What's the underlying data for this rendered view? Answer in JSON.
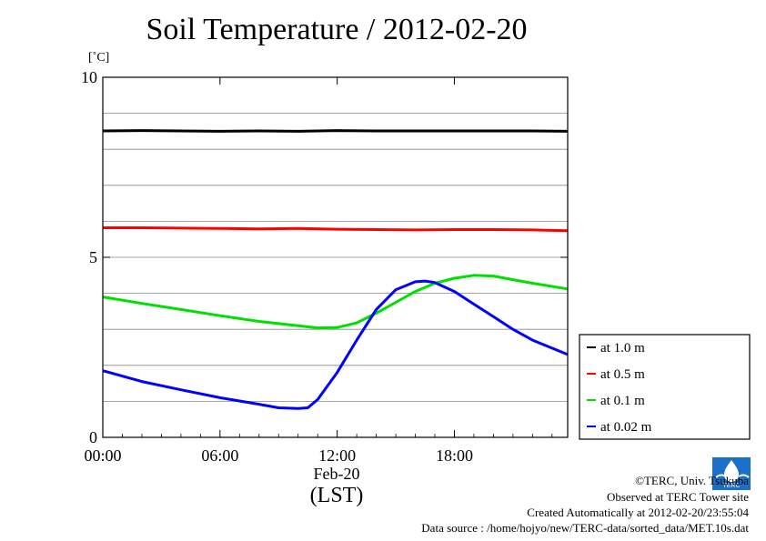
{
  "title": "Soil Temperature / 2012-02-20",
  "unit_label": "[˚C]",
  "date_label": "Feb-20",
  "timezone_label": "(LST)",
  "footer": {
    "copyright": "©TERC, Univ. Tsukuba",
    "observed": "Observed at TERC Tower site",
    "created": "Created Automatically at 2012-02-20/23:55:04",
    "source": "Data source : /home/hojyo/new/TERC-data/sorted_data/MET.10s.dat"
  },
  "logo_text": "TERC",
  "colors": {
    "black": "#000000",
    "red": "#ff0000",
    "green": "#00e000",
    "blue": "#0000ff",
    "logo": "#1a6fc8"
  },
  "chart_data": {
    "type": "line",
    "xlabel": "",
    "ylabel": "[˚C]",
    "xlim": [
      0,
      23.8
    ],
    "ylim": [
      0,
      10
    ],
    "x_ticks": [
      0,
      6,
      12,
      18
    ],
    "x_tick_labels": [
      "00:00",
      "06:00",
      "12:00",
      "18:00"
    ],
    "y_ticks": [
      0,
      5,
      10
    ],
    "y_tick_labels": [
      "0",
      "5",
      "10"
    ],
    "grid": "horizontal",
    "legend": "right",
    "series": [
      {
        "name": "at 1.0 m",
        "color": "#000000",
        "x": [
          0,
          2,
          4,
          6,
          8,
          10,
          12,
          14,
          16,
          18,
          20,
          22,
          23.8
        ],
        "values": [
          8.51,
          8.52,
          8.51,
          8.5,
          8.51,
          8.5,
          8.52,
          8.51,
          8.51,
          8.51,
          8.51,
          8.51,
          8.5
        ]
      },
      {
        "name": "at 0.5 m",
        "color": "#ff0000",
        "x": [
          0,
          2,
          4,
          6,
          8,
          10,
          12,
          14,
          16,
          18,
          20,
          22,
          23.8
        ],
        "values": [
          5.82,
          5.82,
          5.81,
          5.8,
          5.79,
          5.8,
          5.78,
          5.77,
          5.76,
          5.77,
          5.77,
          5.76,
          5.74
        ]
      },
      {
        "name": "at 0.1 m",
        "color": "#00e000",
        "x": [
          0,
          2,
          4,
          6,
          8,
          10,
          11,
          12,
          13,
          14,
          15,
          16,
          17,
          18,
          19,
          20,
          21,
          22,
          23.8
        ],
        "values": [
          3.9,
          3.72,
          3.55,
          3.38,
          3.22,
          3.1,
          3.04,
          3.05,
          3.18,
          3.45,
          3.75,
          4.05,
          4.28,
          4.42,
          4.5,
          4.48,
          4.38,
          4.28,
          4.12
        ]
      },
      {
        "name": "at 0.02 m",
        "color": "#0000ff",
        "x": [
          0,
          2,
          4,
          6,
          8,
          9,
          10,
          10.5,
          11,
          12,
          13,
          14,
          15,
          16,
          16.5,
          17,
          18,
          19,
          20,
          21,
          22,
          23.8
        ],
        "values": [
          1.85,
          1.55,
          1.32,
          1.1,
          0.92,
          0.82,
          0.8,
          0.82,
          1.05,
          1.8,
          2.7,
          3.55,
          4.1,
          4.32,
          4.34,
          4.3,
          4.05,
          3.7,
          3.35,
          3.0,
          2.7,
          2.3
        ]
      }
    ]
  }
}
